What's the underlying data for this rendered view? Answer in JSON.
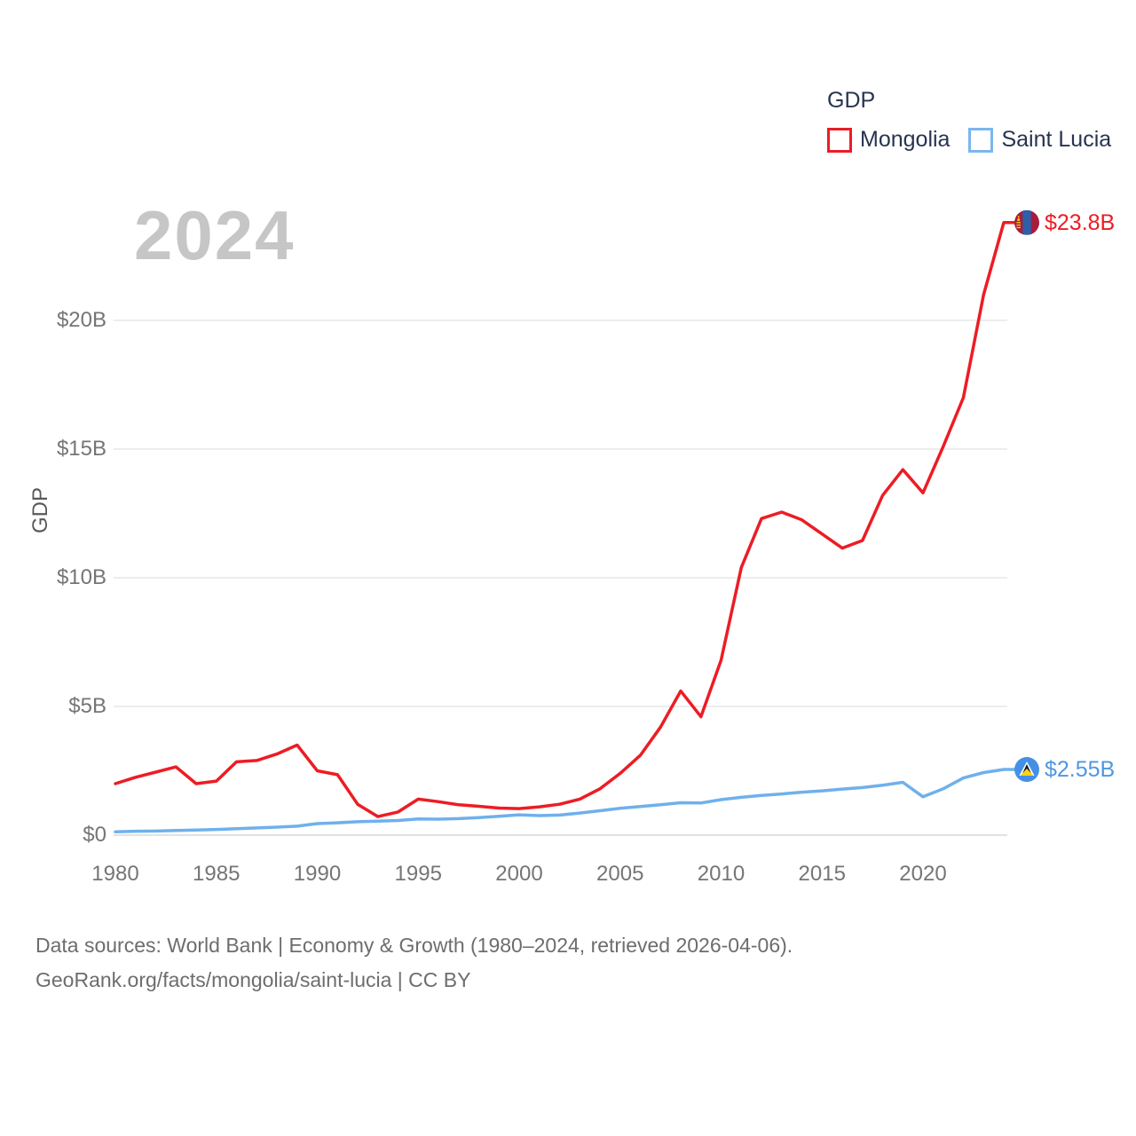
{
  "watermark": "2024",
  "legend": {
    "title": "GDP",
    "items": [
      {
        "label": "Mongolia",
        "color": "#ed1c24"
      },
      {
        "label": "Saint Lucia",
        "color": "#7ab6f0"
      }
    ]
  },
  "footer": {
    "line1": "Data sources: World Bank | Economy & Growth (1980–2024, retrieved 2026-04-06).",
    "line2": "GeoRank.org/facts/mongolia/saint-lucia | CC BY"
  },
  "chart_data": {
    "type": "line",
    "title": "GDP",
    "xlabel": "",
    "ylabel": "GDP",
    "grid": true,
    "legend_position": "top-right",
    "xlim": [
      1980,
      2024
    ],
    "ylim": [
      0,
      24.2
    ],
    "unit": "billions USD",
    "x": [
      1980,
      1981,
      1982,
      1983,
      1984,
      1985,
      1986,
      1987,
      1988,
      1989,
      1990,
      1991,
      1992,
      1993,
      1994,
      1995,
      1996,
      1997,
      1998,
      1999,
      2000,
      2001,
      2002,
      2003,
      2004,
      2005,
      2006,
      2007,
      2008,
      2009,
      2010,
      2011,
      2012,
      2013,
      2014,
      2015,
      2016,
      2017,
      2018,
      2019,
      2020,
      2021,
      2022,
      2023,
      2024
    ],
    "x_ticks": [
      {
        "value": 1980,
        "label": "1980"
      },
      {
        "value": 1985,
        "label": "1985"
      },
      {
        "value": 1990,
        "label": "1990"
      },
      {
        "value": 1995,
        "label": "1995"
      },
      {
        "value": 2000,
        "label": "2000"
      },
      {
        "value": 2005,
        "label": "2005"
      },
      {
        "value": 2010,
        "label": "2010"
      },
      {
        "value": 2015,
        "label": "2015"
      },
      {
        "value": 2020,
        "label": "2020"
      }
    ],
    "y_ticks": [
      {
        "value": 0,
        "label": "$0"
      },
      {
        "value": 5,
        "label": "$5B"
      },
      {
        "value": 10,
        "label": "$10B"
      },
      {
        "value": 15,
        "label": "$15B"
      },
      {
        "value": 20,
        "label": "$20B"
      }
    ],
    "series": [
      {
        "name": "Mongolia",
        "color": "#ed1c24",
        "label_color": "#ed1c24",
        "end_label": "$23.8B",
        "end_value": 23.8,
        "flag": "mongolia",
        "values": [
          2.0,
          2.25,
          2.45,
          2.65,
          2.0,
          2.1,
          2.85,
          2.9,
          3.15,
          3.5,
          2.5,
          2.35,
          1.2,
          0.72,
          0.9,
          1.4,
          1.3,
          1.18,
          1.12,
          1.05,
          1.03,
          1.1,
          1.2,
          1.4,
          1.8,
          2.4,
          3.1,
          4.2,
          5.6,
          4.6,
          6.8,
          10.4,
          12.3,
          12.55,
          12.25,
          11.7,
          11.15,
          11.45,
          13.2,
          14.2,
          13.3,
          15.1,
          17.0,
          21.0,
          23.8
        ]
      },
      {
        "name": "Saint Lucia",
        "color": "#6fb0ec",
        "label_color": "#4f97e2",
        "end_label": "$2.55B",
        "end_value": 2.55,
        "flag": "saint-lucia",
        "values": [
          0.13,
          0.15,
          0.16,
          0.18,
          0.2,
          0.22,
          0.25,
          0.28,
          0.31,
          0.35,
          0.45,
          0.48,
          0.52,
          0.54,
          0.57,
          0.63,
          0.62,
          0.64,
          0.68,
          0.73,
          0.79,
          0.76,
          0.78,
          0.86,
          0.95,
          1.04,
          1.11,
          1.18,
          1.26,
          1.25,
          1.38,
          1.47,
          1.54,
          1.6,
          1.67,
          1.72,
          1.79,
          1.85,
          1.94,
          2.05,
          1.49,
          1.8,
          2.22,
          2.43,
          2.55
        ]
      }
    ]
  }
}
